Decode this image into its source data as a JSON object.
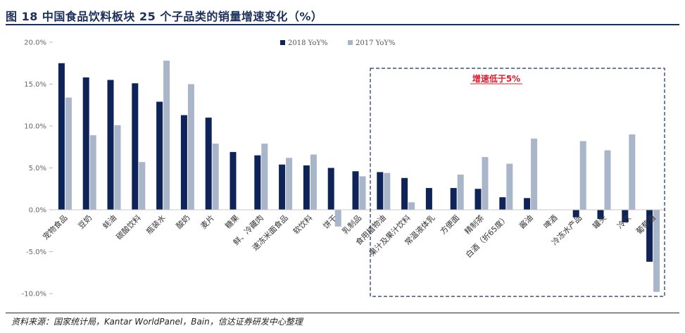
{
  "figure": {
    "title": "图 18 中国食品饮料板块 25 个子品类的销量增速变化（%）",
    "source": "资料来源：国家统计局，Kantar WorldPanel，Bain，信达证券研发中心整理"
  },
  "colors": {
    "title": "#1a2f5a",
    "series_2018": "#0e2357",
    "series_2017": "#a9b5c9",
    "callout_border": "#1a2f5a",
    "callout_text": "#e4192b"
  },
  "chart_data": {
    "type": "bar",
    "categories": [
      "宠物食品",
      "豆奶",
      "蚝油",
      "碳酸饮料",
      "瓶装水",
      "酸奶",
      "麦片",
      "糖果",
      "鲜、冷藏肉",
      "速冻米面食品",
      "软饮料",
      "饼干",
      "乳制品",
      "食用植物油",
      "果汁及果汁饮料",
      "常温液体乳",
      "方便面",
      "精制茶",
      "白酒（折65度）",
      "酱油",
      "啤酒",
      "冷冻水产品",
      "罐头",
      "冷饮",
      "葡萄酒"
    ],
    "series": [
      {
        "name": "2018 YoY%",
        "values": [
          17.5,
          15.8,
          15.5,
          15.1,
          12.9,
          11.3,
          11.0,
          6.9,
          6.5,
          5.4,
          5.3,
          5.0,
          4.6,
          4.5,
          3.8,
          2.6,
          2.6,
          2.5,
          1.5,
          1.4,
          0.0,
          -0.9,
          -1.1,
          -1.5,
          -6.2
        ]
      },
      {
        "name": "2017 YoY%",
        "values": [
          13.4,
          8.9,
          10.1,
          5.7,
          17.8,
          15.0,
          7.9,
          0.0,
          7.9,
          6.2,
          6.6,
          -2.0,
          4.0,
          4.4,
          0.9,
          0.0,
          4.2,
          6.3,
          5.5,
          8.5,
          0.0,
          8.2,
          7.1,
          9.0,
          -9.8
        ]
      }
    ],
    "yticks": [
      "20.0%",
      "15.0%",
      "10.0%",
      "5.0%",
      "0.0%",
      "-5.0%",
      "-10.0%"
    ],
    "ylim": [
      -10,
      20
    ],
    "grid": false,
    "legend_position": "top-center",
    "annotation": "增速低于5%"
  }
}
